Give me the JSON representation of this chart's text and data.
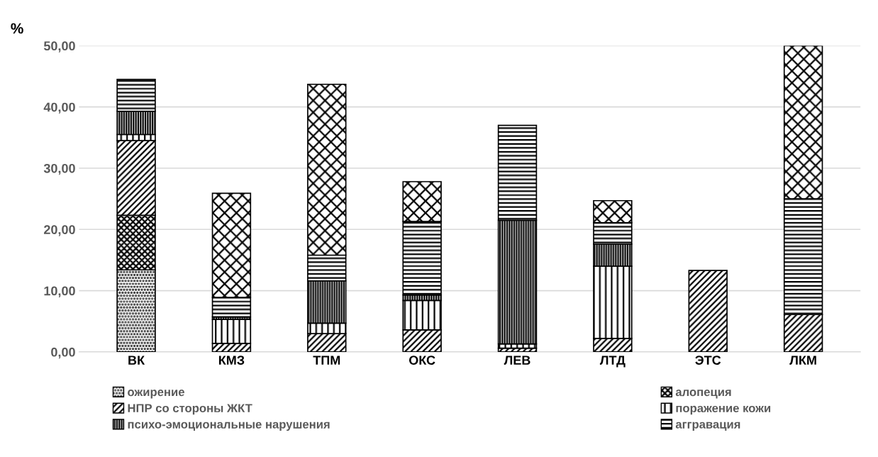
{
  "chart_data": {
    "type": "bar",
    "stacked": true,
    "ylabel": "%",
    "categories": [
      "ВК",
      "КМЗ",
      "ТПМ",
      "ОКС",
      "ЛЕВ",
      "ЛТД",
      "ЭТС",
      "ЛКМ"
    ],
    "series": [
      {
        "name": "ожирение",
        "color": "#000000",
        "values": [
          13.4,
          null,
          null,
          null,
          null,
          null,
          null,
          null
        ]
      },
      {
        "name": "алопеция",
        "color": "#000000",
        "values": [
          8.9,
          null,
          null,
          null,
          null,
          null,
          null,
          null
        ]
      },
      {
        "name": "НПР со стороны ЖКТ",
        "color": "#000000",
        "values": [
          12.2,
          1.4,
          3.0,
          3.6,
          0.6,
          2.2,
          13.3,
          6.1
        ]
      },
      {
        "name": "поражение кожи",
        "color": "#000000",
        "values": [
          1.0,
          3.9,
          1.7,
          4.8,
          0.7,
          11.8,
          null,
          null
        ]
      },
      {
        "name": "психо-эмоциональные нарушения",
        "color": "#000000",
        "values": [
          3.8,
          0.4,
          6.9,
          0.9,
          20.2,
          3.6,
          null,
          null
        ]
      },
      {
        "name": "аггравация",
        "color": "#000000",
        "values": [
          5.2,
          3.2,
          4.2,
          12.0,
          15.5,
          3.5,
          null,
          18.9
        ]
      },
      {
        "color": "#000000",
        "values": [
          null,
          17.0,
          27.9,
          6.5,
          null,
          3.6,
          null,
          25.0
        ]
      }
    ],
    "ylim": [
      0,
      50
    ],
    "yticks": [
      {
        "value": 0,
        "label": "0,00"
      },
      {
        "value": 10,
        "label": "10,00"
      },
      {
        "value": 20,
        "label": "20,00"
      },
      {
        "value": 30,
        "label": "30,00"
      },
      {
        "value": 40,
        "label": "40,00"
      },
      {
        "value": 50,
        "label": "50,00"
      }
    ],
    "grid": "y",
    "legend": "bottom"
  }
}
